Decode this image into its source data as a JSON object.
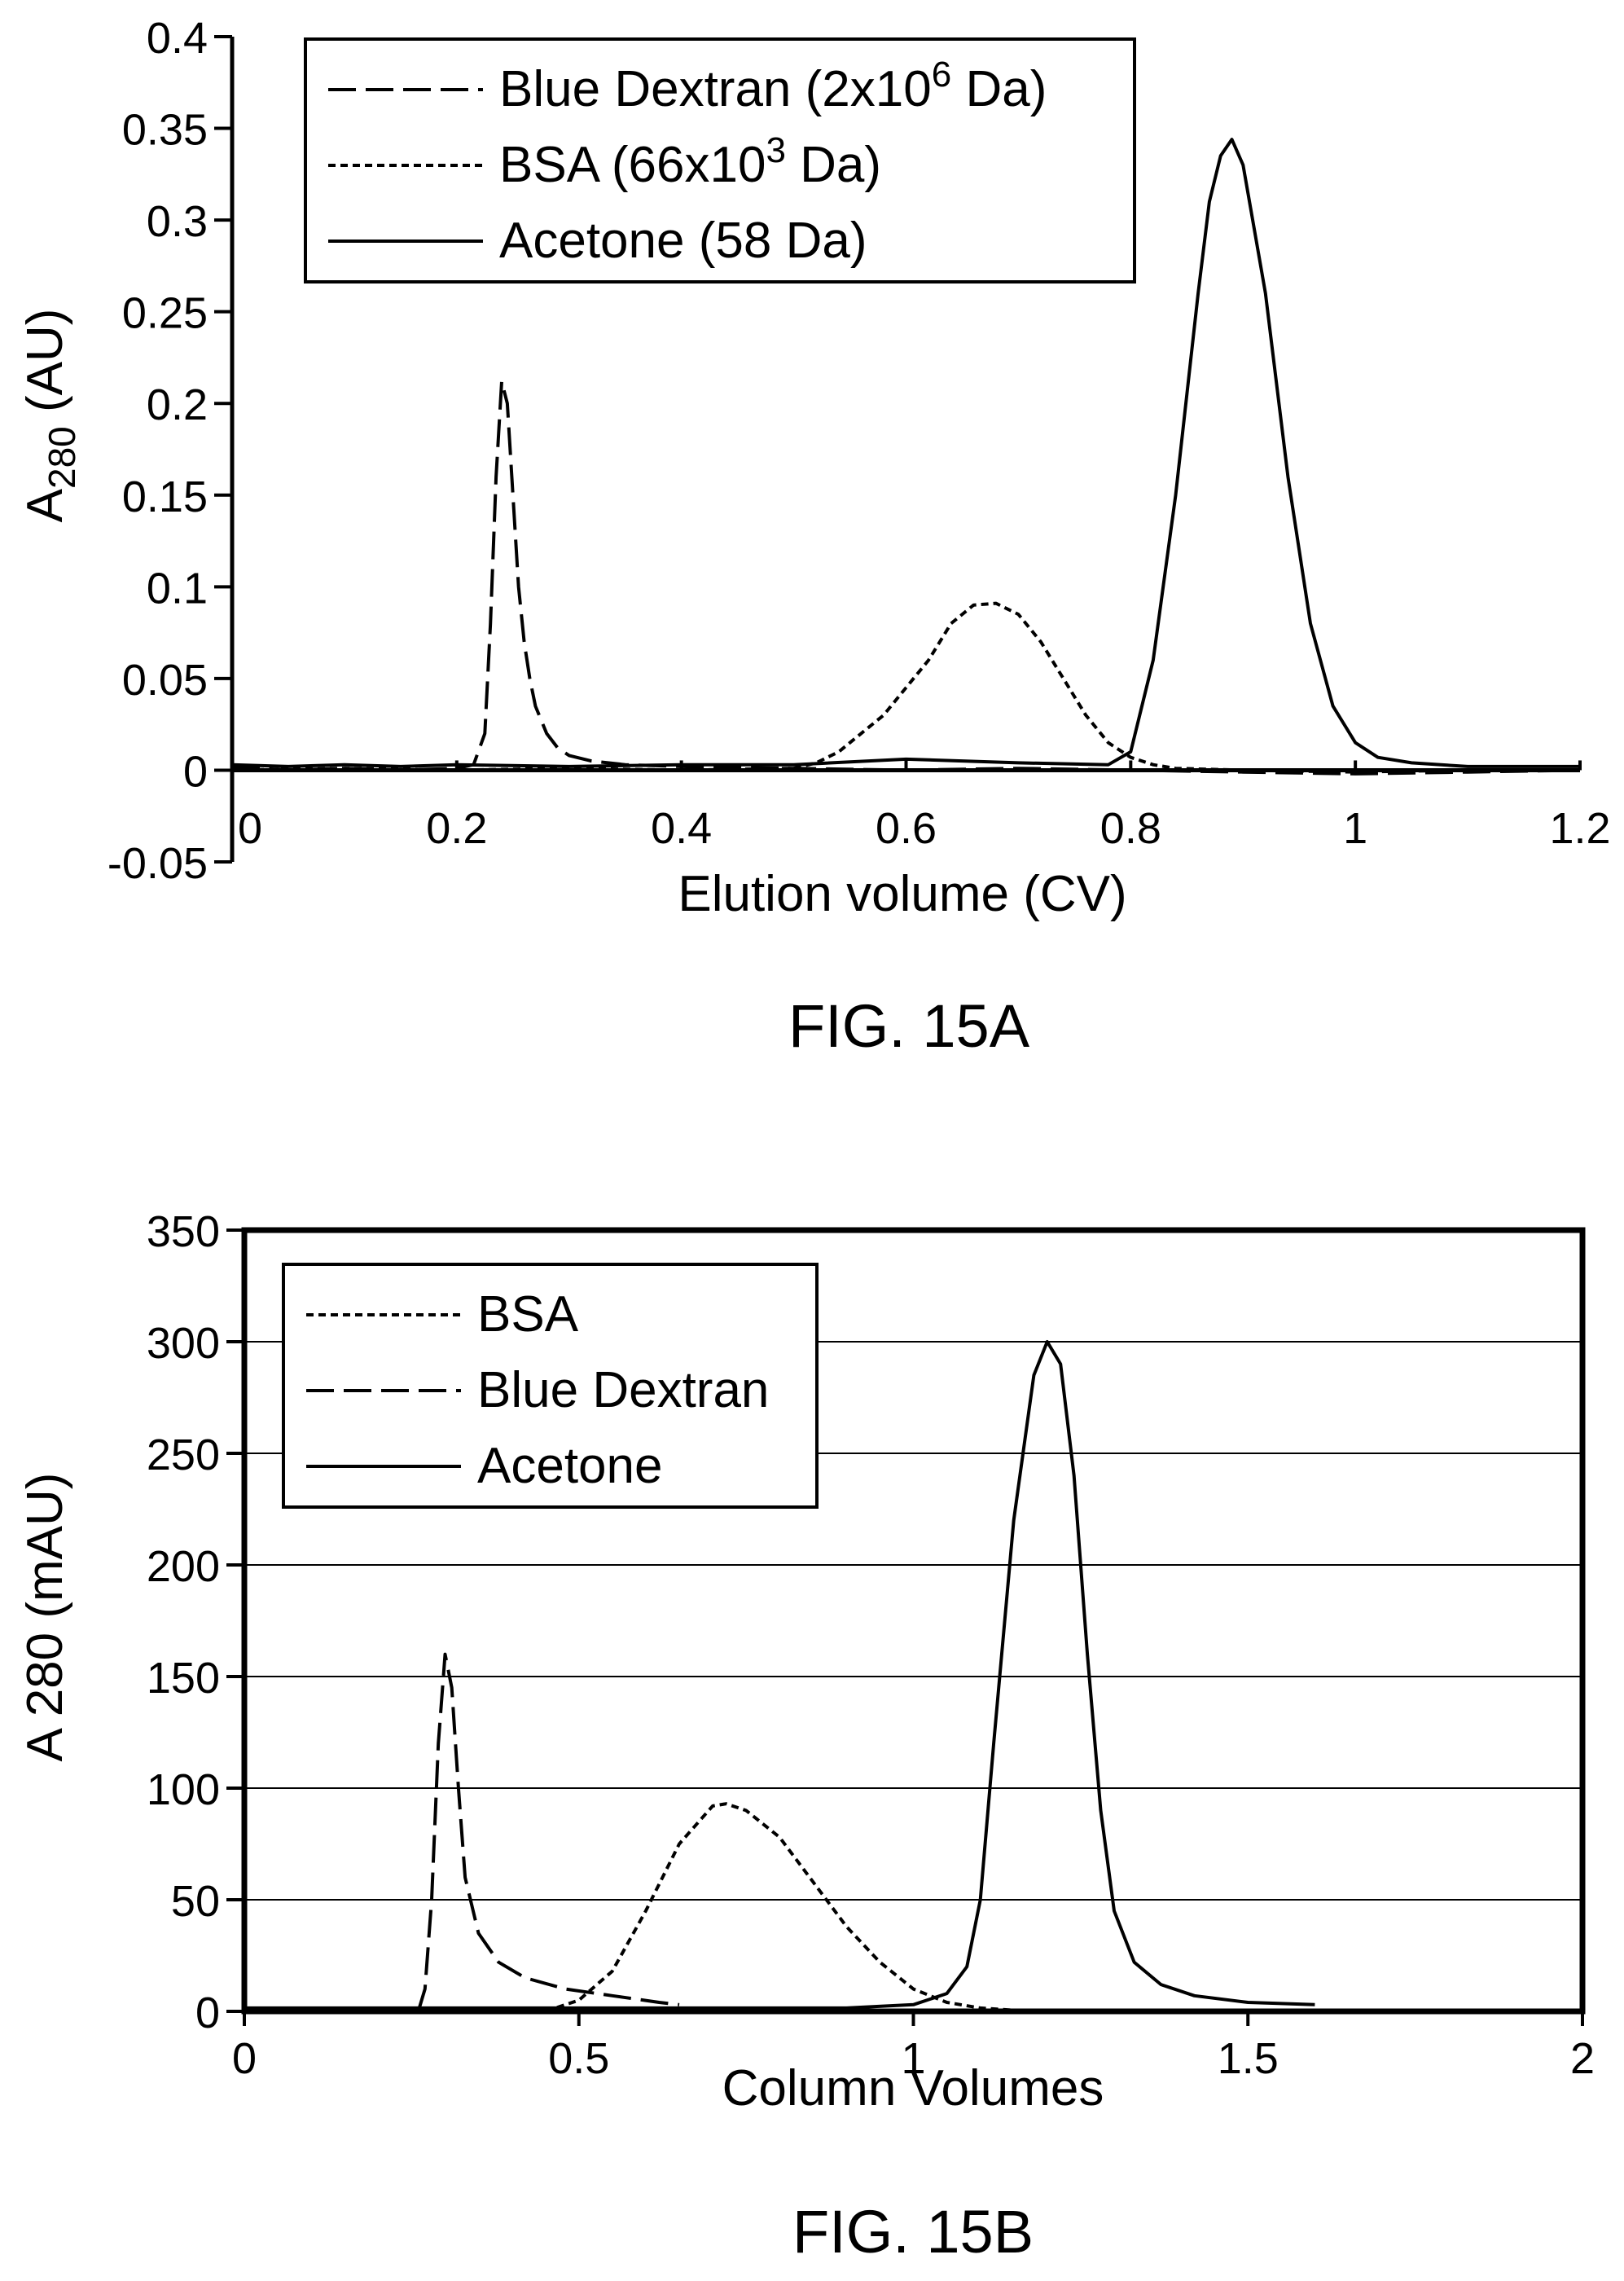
{
  "chart_data": [
    {
      "type": "line",
      "caption": "FIG. 15A",
      "xlabel": "Elution volume (CV)",
      "ylabel": "A",
      "ylabel_sub": "280",
      "ylabel_suffix": " (AU)",
      "xlim": [
        0,
        1.2
      ],
      "ylim": [
        -0.05,
        0.4
      ],
      "xticks": [
        {
          "v": 0,
          "label": "0"
        },
        {
          "v": 0.2,
          "label": "0.2"
        },
        {
          "v": 0.4,
          "label": "0.4"
        },
        {
          "v": 0.6,
          "label": "0.6"
        },
        {
          "v": 0.8,
          "label": "0.8"
        },
        {
          "v": 1.0,
          "label": "1"
        },
        {
          "v": 1.2,
          "label": "1.2"
        }
      ],
      "yticks": [
        {
          "v": 0.4,
          "label": "0.4"
        },
        {
          "v": 0.35,
          "label": "0.35"
        },
        {
          "v": 0.3,
          "label": "0.3"
        },
        {
          "v": 0.25,
          "label": "0.25"
        },
        {
          "v": 0.2,
          "label": "0.2"
        },
        {
          "v": 0.15,
          "label": "0.15"
        },
        {
          "v": 0.1,
          "label": "0.1"
        },
        {
          "v": 0.05,
          "label": "0.05"
        },
        {
          "v": 0,
          "label": "0"
        },
        {
          "v": -0.05,
          "label": "-0.05"
        }
      ],
      "grid": false,
      "legend_position": "top-left",
      "series": [
        {
          "name": "Blue Dextran (2x10",
          "name_sup": "6",
          "name_suffix": " Da)",
          "style": "dashed",
          "points": [
            [
              0,
              0.002
            ],
            [
              0.05,
              0.0
            ],
            [
              0.1,
              0.001
            ],
            [
              0.15,
              0.0
            ],
            [
              0.2,
              0.001
            ],
            [
              0.215,
              0.003
            ],
            [
              0.225,
              0.02
            ],
            [
              0.23,
              0.08
            ],
            [
              0.235,
              0.16
            ],
            [
              0.24,
              0.212
            ],
            [
              0.245,
              0.2
            ],
            [
              0.25,
              0.15
            ],
            [
              0.255,
              0.1
            ],
            [
              0.26,
              0.07
            ],
            [
              0.265,
              0.05
            ],
            [
              0.27,
              0.035
            ],
            [
              0.28,
              0.02
            ],
            [
              0.29,
              0.012
            ],
            [
              0.3,
              0.008
            ],
            [
              0.32,
              0.005
            ],
            [
              0.35,
              0.003
            ],
            [
              0.4,
              0.002
            ],
            [
              0.5,
              0.001
            ],
            [
              0.6,
              0.0
            ],
            [
              0.7,
              0.001
            ],
            [
              0.8,
              0.0
            ],
            [
              0.9,
              -0.001
            ],
            [
              1.0,
              -0.002
            ],
            [
              1.1,
              -0.001
            ],
            [
              1.2,
              0.0
            ]
          ]
        },
        {
          "name": "BSA  (66x10",
          "name_sup": "3",
          "name_suffix": " Da)",
          "style": "dotted",
          "points": [
            [
              0,
              0.0
            ],
            [
              0.1,
              0.001
            ],
            [
              0.2,
              0.0
            ],
            [
              0.3,
              0.001
            ],
            [
              0.4,
              0.0
            ],
            [
              0.5,
              0.001
            ],
            [
              0.52,
              0.004
            ],
            [
              0.54,
              0.01
            ],
            [
              0.56,
              0.02
            ],
            [
              0.58,
              0.03
            ],
            [
              0.6,
              0.045
            ],
            [
              0.62,
              0.06
            ],
            [
              0.64,
              0.08
            ],
            [
              0.66,
              0.09
            ],
            [
              0.68,
              0.091
            ],
            [
              0.7,
              0.085
            ],
            [
              0.72,
              0.07
            ],
            [
              0.74,
              0.05
            ],
            [
              0.76,
              0.03
            ],
            [
              0.78,
              0.015
            ],
            [
              0.8,
              0.007
            ],
            [
              0.82,
              0.003
            ],
            [
              0.84,
              0.001
            ],
            [
              0.9,
              0.0
            ],
            [
              1.0,
              -0.001
            ],
            [
              1.1,
              0.0
            ],
            [
              1.2,
              0.0
            ]
          ]
        },
        {
          "name": "Acetone (58 Da)",
          "style": "solid",
          "points": [
            [
              0,
              0.003
            ],
            [
              0.05,
              0.002
            ],
            [
              0.1,
              0.003
            ],
            [
              0.15,
              0.002
            ],
            [
              0.2,
              0.003
            ],
            [
              0.3,
              0.002
            ],
            [
              0.4,
              0.003
            ],
            [
              0.5,
              0.003
            ],
            [
              0.6,
              0.006
            ],
            [
              0.7,
              0.004
            ],
            [
              0.78,
              0.003
            ],
            [
              0.8,
              0.01
            ],
            [
              0.82,
              0.06
            ],
            [
              0.84,
              0.15
            ],
            [
              0.86,
              0.26
            ],
            [
              0.87,
              0.31
            ],
            [
              0.88,
              0.335
            ],
            [
              0.89,
              0.344
            ],
            [
              0.9,
              0.33
            ],
            [
              0.92,
              0.26
            ],
            [
              0.94,
              0.16
            ],
            [
              0.96,
              0.08
            ],
            [
              0.98,
              0.035
            ],
            [
              1.0,
              0.015
            ],
            [
              1.02,
              0.007
            ],
            [
              1.05,
              0.004
            ],
            [
              1.1,
              0.002
            ],
            [
              1.2,
              0.002
            ]
          ]
        }
      ]
    },
    {
      "type": "line",
      "caption": "FIG. 15B",
      "xlabel": "Column Volumes",
      "ylabel": "A 280 (mAU)",
      "xlim": [
        0,
        2
      ],
      "ylim": [
        0,
        350
      ],
      "xticks": [
        {
          "v": 0,
          "label": "0"
        },
        {
          "v": 0.5,
          "label": "0.5"
        },
        {
          "v": 1,
          "label": "1"
        },
        {
          "v": 1.5,
          "label": "1.5"
        },
        {
          "v": 2,
          "label": "2"
        }
      ],
      "yticks": [
        {
          "v": 350,
          "label": "350"
        },
        {
          "v": 300,
          "label": "300"
        },
        {
          "v": 250,
          "label": "250"
        },
        {
          "v": 200,
          "label": "200"
        },
        {
          "v": 150,
          "label": "150"
        },
        {
          "v": 100,
          "label": "100"
        },
        {
          "v": 50,
          "label": "50"
        },
        {
          "v": 0,
          "label": "0"
        }
      ],
      "grid": true,
      "legend_position": "top-left",
      "series": [
        {
          "name": "BSA",
          "style": "dotted",
          "points": [
            [
              0.45,
              0
            ],
            [
              0.5,
              5
            ],
            [
              0.55,
              18
            ],
            [
              0.6,
              45
            ],
            [
              0.65,
              75
            ],
            [
              0.7,
              92
            ],
            [
              0.72,
              93
            ],
            [
              0.75,
              90
            ],
            [
              0.8,
              78
            ],
            [
              0.85,
              58
            ],
            [
              0.9,
              38
            ],
            [
              0.95,
              22
            ],
            [
              1.0,
              10
            ],
            [
              1.05,
              4
            ],
            [
              1.1,
              1.5
            ],
            [
              1.15,
              0.5
            ]
          ]
        },
        {
          "name": "Blue Dextran",
          "style": "dashed",
          "points": [
            [
              0.26,
              0
            ],
            [
              0.27,
              10
            ],
            [
              0.28,
              50
            ],
            [
              0.29,
              120
            ],
            [
              0.3,
              160
            ],
            [
              0.31,
              145
            ],
            [
              0.32,
              100
            ],
            [
              0.33,
              60
            ],
            [
              0.35,
              35
            ],
            [
              0.38,
              22
            ],
            [
              0.42,
              15
            ],
            [
              0.48,
              10
            ],
            [
              0.55,
              7
            ],
            [
              0.62,
              4
            ],
            [
              0.65,
              3
            ]
          ]
        },
        {
          "name": "Acetone",
          "style": "solid",
          "points": [
            [
              0,
              1.5
            ],
            [
              0.3,
              1.5
            ],
            [
              0.6,
              1.5
            ],
            [
              0.9,
              1.5
            ],
            [
              1.0,
              3
            ],
            [
              1.05,
              8
            ],
            [
              1.08,
              20
            ],
            [
              1.1,
              50
            ],
            [
              1.12,
              120
            ],
            [
              1.15,
              220
            ],
            [
              1.18,
              285
            ],
            [
              1.2,
              300
            ],
            [
              1.22,
              290
            ],
            [
              1.24,
              240
            ],
            [
              1.26,
              160
            ],
            [
              1.28,
              90
            ],
            [
              1.3,
              45
            ],
            [
              1.33,
              22
            ],
            [
              1.37,
              12
            ],
            [
              1.42,
              7
            ],
            [
              1.5,
              4
            ],
            [
              1.6,
              3
            ]
          ]
        }
      ]
    }
  ]
}
